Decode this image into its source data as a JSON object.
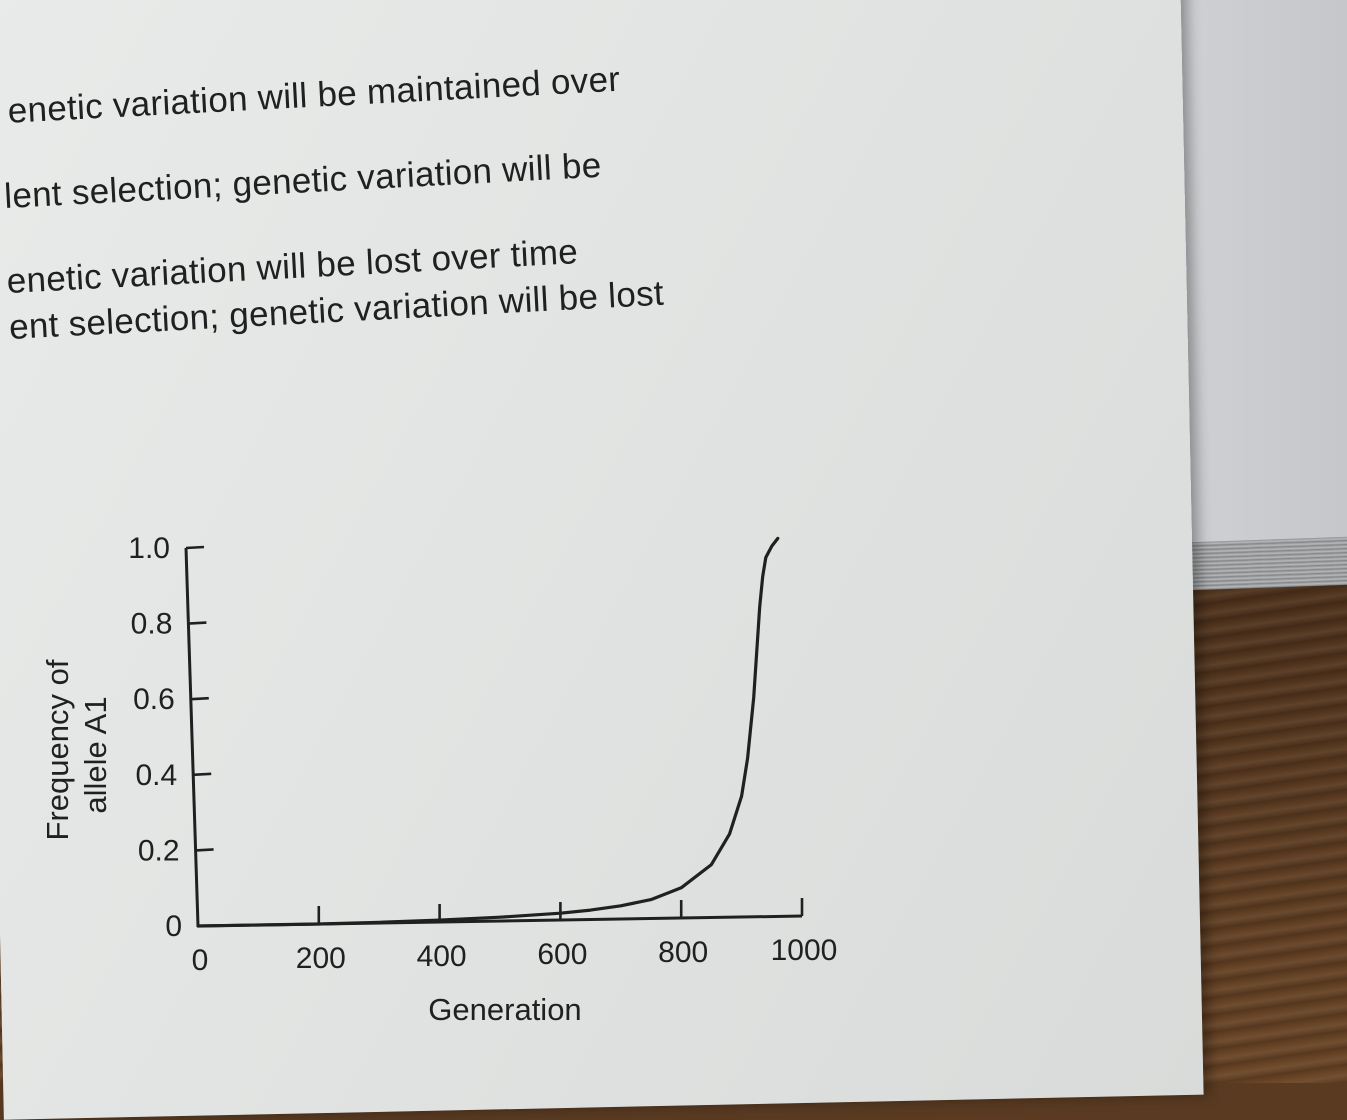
{
  "page": {
    "text_lines": [
      "enetic variation will be maintained over",
      "lent selection; genetic variation will be",
      "enetic variation will be lost over time",
      "ent selection; genetic variation will be lost"
    ]
  },
  "colors": {
    "paper": "#e4e6e5",
    "ink": "#1f2021",
    "wood": "#5a3b22",
    "book": "#c4c6c9"
  },
  "chart_data": {
    "type": "line",
    "title": "",
    "xlabel": "Generation",
    "ylabel_line1": "Frequency of",
    "ylabel_line2": "allele A1",
    "xlim": [
      0,
      1000
    ],
    "ylim": [
      0,
      1.0
    ],
    "x_ticks": [
      "0",
      "200",
      "400",
      "600",
      "800",
      "1000"
    ],
    "y_ticks": [
      "0",
      "0.2",
      "0.4",
      "0.6",
      "0.8",
      "1.0"
    ],
    "grid": false,
    "series": [
      {
        "x": [
          0,
          100,
          200,
          300,
          400,
          500,
          600,
          650,
          700,
          750,
          800,
          850,
          880,
          900,
          910,
          920,
          925,
          930,
          935,
          940,
          950,
          960
        ],
        "values": [
          0.0,
          0.0,
          0.0,
          0.002,
          0.005,
          0.01,
          0.018,
          0.025,
          0.035,
          0.05,
          0.08,
          0.14,
          0.22,
          0.32,
          0.42,
          0.58,
          0.7,
          0.82,
          0.9,
          0.95,
          0.98,
          1.0
        ]
      }
    ]
  }
}
